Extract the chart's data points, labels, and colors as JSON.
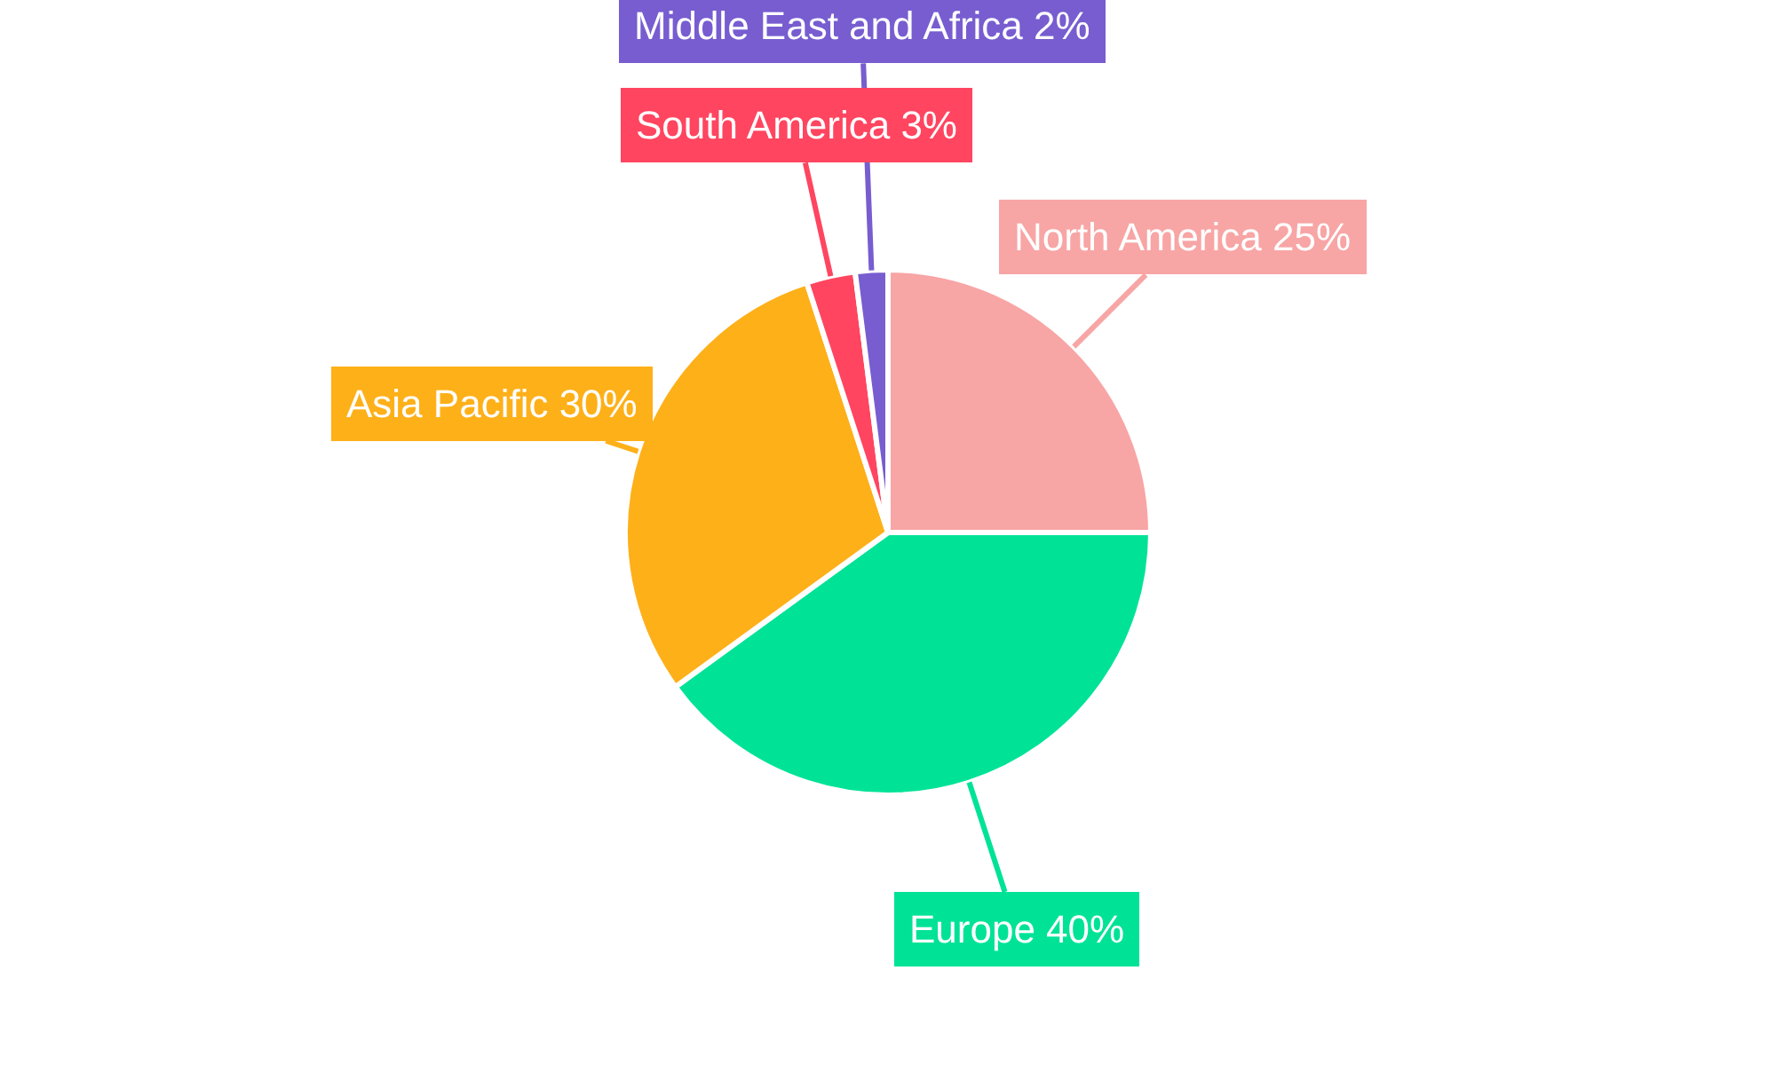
{
  "chart_data": {
    "type": "pie",
    "categories": [
      "North America",
      "Europe",
      "Asia Pacific",
      "South America",
      "Middle East and Africa"
    ],
    "values": [
      25,
      40,
      30,
      3,
      2
    ],
    "value_labels": [
      "25%",
      "40%",
      "30%",
      "3%",
      "2%"
    ],
    "colors": [
      "#f8a5a5",
      "#00e396",
      "#feb019",
      "#ff4560",
      "#775dd0"
    ],
    "legend": false
  }
}
